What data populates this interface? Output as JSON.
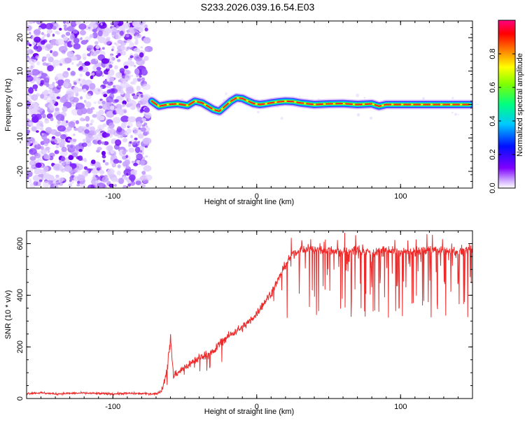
{
  "title": "S233.2026.039.16.54.E03",
  "chart_data": [
    {
      "type": "heatmap",
      "xlabel": "Height of straight line (km)",
      "ylabel": "Frequency (Hz)",
      "xlim": [
        -160,
        150
      ],
      "ylim": [
        -25,
        25
      ],
      "xticks": [
        -100,
        0,
        100
      ],
      "yticks": [
        -20,
        -10,
        0,
        10,
        20
      ],
      "noise_region_x": [
        -160,
        -75
      ],
      "signal_start_x": -75,
      "signal_track": {
        "x": [
          -73,
          -68,
          -62,
          -55,
          -48,
          -43,
          -38,
          -34,
          -30,
          -26,
          -22,
          -18,
          -14,
          -10,
          -6,
          -2,
          2,
          6,
          10,
          15,
          20,
          25,
          30,
          40,
          50,
          60,
          70,
          80,
          85,
          90,
          100,
          110,
          120,
          130,
          140,
          148
        ],
        "y": [
          1.0,
          -0.5,
          0.0,
          0.2,
          -0.3,
          1.0,
          0.5,
          -0.5,
          -1.5,
          -2.0,
          -0.5,
          1.0,
          2.0,
          1.8,
          1.0,
          0.3,
          0.0,
          0.2,
          0.5,
          0.8,
          1.0,
          0.9,
          0.5,
          0.0,
          0.2,
          0.3,
          0.0,
          0.2,
          -0.5,
          0.0,
          0.0,
          0.0,
          0.0,
          0.0,
          0.0,
          0.0
        ]
      },
      "colorbar": {
        "label": "Normalized spectral amplitude",
        "ticks": [
          0.0,
          0.2,
          0.4,
          0.6,
          0.8
        ],
        "range": [
          0,
          1
        ],
        "colors": [
          "#8000ff",
          "#0000ff",
          "#00c8ff",
          "#00ff80",
          "#80ff00",
          "#ffff00",
          "#ff8000",
          "#ff0000",
          "#ff0080"
        ]
      }
    },
    {
      "type": "line",
      "xlabel": "Height of straight line (km)",
      "ylabel": "SNR (10 * v/v)",
      "xlim": [
        -160,
        150
      ],
      "ylim": [
        0,
        650
      ],
      "xticks": [
        -100,
        0,
        100
      ],
      "yticks": [
        0,
        200,
        400,
        600
      ],
      "color": "#ee2b2b",
      "series": [
        {
          "x": [
            -160,
            -150,
            -140,
            -130,
            -120,
            -110,
            -100,
            -90,
            -80,
            -70,
            -66,
            -63,
            -61,
            -60,
            -58,
            -55,
            -50,
            -45,
            -40,
            -35,
            -30,
            -25,
            -20,
            -15,
            -10,
            -5,
            0,
            5,
            10,
            15,
            20,
            25,
            30,
            40,
            50,
            60,
            70,
            80,
            90,
            100,
            110,
            120,
            130,
            140,
            150
          ],
          "y": [
            20,
            22,
            18,
            20,
            21,
            19,
            18,
            20,
            19,
            18,
            30,
            100,
            180,
            240,
            90,
            100,
            120,
            140,
            160,
            170,
            180,
            220,
            240,
            260,
            275,
            300,
            330,
            370,
            410,
            460,
            520,
            560,
            575,
            580,
            575,
            570,
            575,
            565,
            575,
            570,
            570,
            575,
            570,
            570,
            575
          ]
        }
      ]
    }
  ]
}
